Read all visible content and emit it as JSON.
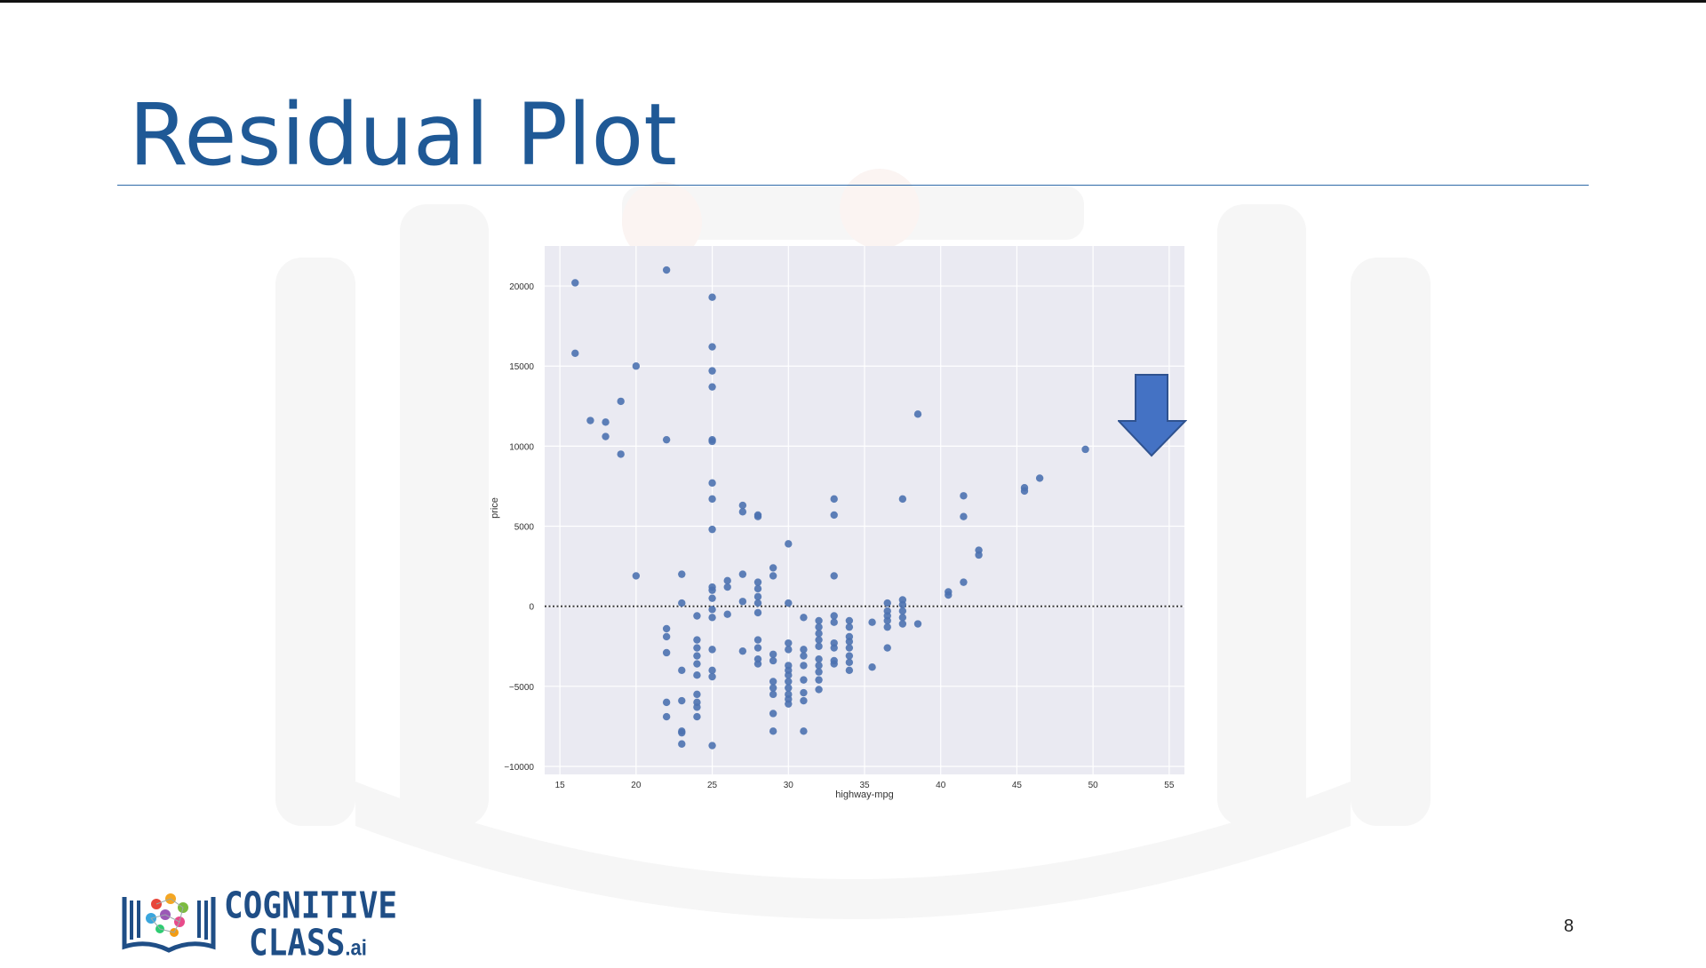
{
  "slide": {
    "title": "Residual Plot",
    "page_number": "8",
    "title_color": "#1f5996",
    "arrow": {
      "icon": "down-arrow-icon",
      "color": "#4472c4"
    }
  },
  "logo": {
    "line1": "COGNITIVE",
    "line2": "CLASS",
    "suffix": ".ai",
    "icon": "open-book-icon"
  },
  "chart_data": {
    "type": "scatter",
    "xlabel": "highway-mpg",
    "ylabel": "price",
    "xlim": [
      14,
      56
    ],
    "ylim": [
      -10500,
      22500
    ],
    "xticks": [
      15,
      20,
      25,
      30,
      35,
      40,
      45,
      50,
      55
    ],
    "yticks": [
      -10000,
      -5000,
      0,
      5000,
      10000,
      15000,
      20000
    ],
    "ytick_labels": [
      "−10000",
      "−5000",
      "0",
      "5000",
      "10000",
      "15000",
      "20000"
    ],
    "grid": true,
    "background": "#eaeaf2",
    "point_color": "#4c72b0",
    "reference_line": {
      "y": 0,
      "style": "dotted",
      "color": "#333333"
    },
    "points": [
      [
        16,
        20200
      ],
      [
        16,
        15800
      ],
      [
        17,
        11600
      ],
      [
        18,
        11500
      ],
      [
        18,
        10600
      ],
      [
        19,
        12800
      ],
      [
        19,
        9500
      ],
      [
        20,
        15000
      ],
      [
        20,
        1900
      ],
      [
        22,
        21000
      ],
      [
        22,
        10400
      ],
      [
        22,
        -1400
      ],
      [
        22,
        -1900
      ],
      [
        22,
        -2900
      ],
      [
        22,
        -6000
      ],
      [
        22,
        -6900
      ],
      [
        23,
        2000
      ],
      [
        23,
        200
      ],
      [
        23,
        -4000
      ],
      [
        23,
        -5900
      ],
      [
        23,
        -7800
      ],
      [
        23,
        -8600
      ],
      [
        23,
        -7900
      ],
      [
        24,
        -600
      ],
      [
        24,
        -2100
      ],
      [
        24,
        -2600
      ],
      [
        24,
        -3100
      ],
      [
        24,
        -3600
      ],
      [
        24,
        -4300
      ],
      [
        24,
        -5500
      ],
      [
        24,
        -6000
      ],
      [
        24,
        -6300
      ],
      [
        24,
        -6900
      ],
      [
        25,
        19300
      ],
      [
        25,
        16200
      ],
      [
        25,
        14700
      ],
      [
        25,
        13700
      ],
      [
        25,
        10400
      ],
      [
        25,
        10300
      ],
      [
        25,
        7700
      ],
      [
        25,
        6700
      ],
      [
        25,
        4800
      ],
      [
        25,
        1200
      ],
      [
        25,
        1000
      ],
      [
        25,
        500
      ],
      [
        25,
        -200
      ],
      [
        25,
        -700
      ],
      [
        25,
        -2700
      ],
      [
        25,
        -4000
      ],
      [
        25,
        -4400
      ],
      [
        25,
        -8700
      ],
      [
        26,
        1600
      ],
      [
        26,
        1200
      ],
      [
        26,
        -500
      ],
      [
        27,
        6300
      ],
      [
        27,
        5900
      ],
      [
        27,
        2000
      ],
      [
        27,
        300
      ],
      [
        27,
        -2800
      ],
      [
        28,
        5700
      ],
      [
        28,
        5600
      ],
      [
        28,
        1500
      ],
      [
        28,
        1100
      ],
      [
        28,
        600
      ],
      [
        28,
        200
      ],
      [
        28,
        -400
      ],
      [
        28,
        -2100
      ],
      [
        28,
        -2600
      ],
      [
        28,
        -3300
      ],
      [
        28,
        -3600
      ],
      [
        29,
        2400
      ],
      [
        29,
        1900
      ],
      [
        29,
        -3000
      ],
      [
        29,
        -3400
      ],
      [
        29,
        -4700
      ],
      [
        29,
        -5100
      ],
      [
        29,
        -5500
      ],
      [
        29,
        -6700
      ],
      [
        29,
        -7800
      ],
      [
        30,
        3900
      ],
      [
        30,
        200
      ],
      [
        30,
        -2300
      ],
      [
        30,
        -2700
      ],
      [
        30,
        -3700
      ],
      [
        30,
        -4000
      ],
      [
        30,
        -4300
      ],
      [
        30,
        -4700
      ],
      [
        30,
        -5100
      ],
      [
        30,
        -5500
      ],
      [
        30,
        -5800
      ],
      [
        30,
        -6100
      ],
      [
        31,
        -700
      ],
      [
        31,
        -2700
      ],
      [
        31,
        -3100
      ],
      [
        31,
        -3700
      ],
      [
        31,
        -4600
      ],
      [
        31,
        -5400
      ],
      [
        31,
        -5900
      ],
      [
        31,
        -7800
      ],
      [
        32,
        -900
      ],
      [
        32,
        -1300
      ],
      [
        32,
        -1700
      ],
      [
        32,
        -2100
      ],
      [
        32,
        -2500
      ],
      [
        32,
        -3300
      ],
      [
        32,
        -3700
      ],
      [
        32,
        -4100
      ],
      [
        32,
        -4600
      ],
      [
        32,
        -5200
      ],
      [
        33,
        6700
      ],
      [
        33,
        5700
      ],
      [
        33,
        1900
      ],
      [
        33,
        -600
      ],
      [
        33,
        -1000
      ],
      [
        33,
        -2300
      ],
      [
        33,
        -2600
      ],
      [
        33,
        -3400
      ],
      [
        33,
        -3600
      ],
      [
        34,
        -900
      ],
      [
        34,
        -1300
      ],
      [
        34,
        -1900
      ],
      [
        34,
        -2200
      ],
      [
        34,
        -2600
      ],
      [
        34,
        -3100
      ],
      [
        34,
        -3500
      ],
      [
        34,
        -4000
      ],
      [
        35.5,
        -3800
      ],
      [
        35.5,
        -1000
      ],
      [
        36.5,
        200
      ],
      [
        36.5,
        -300
      ],
      [
        36.5,
        -600
      ],
      [
        36.5,
        -900
      ],
      [
        36.5,
        -1300
      ],
      [
        36.5,
        -2600
      ],
      [
        37.5,
        6700
      ],
      [
        37.5,
        400
      ],
      [
        37.5,
        100
      ],
      [
        37.5,
        -300
      ],
      [
        37.5,
        -700
      ],
      [
        37.5,
        -1100
      ],
      [
        38.5,
        12000
      ],
      [
        38.5,
        -1100
      ],
      [
        40.5,
        900
      ],
      [
        40.5,
        700
      ],
      [
        41.5,
        6900
      ],
      [
        41.5,
        5600
      ],
      [
        41.5,
        1500
      ],
      [
        42.5,
        3500
      ],
      [
        42.5,
        3200
      ],
      [
        45.5,
        7400
      ],
      [
        45.5,
        7200
      ],
      [
        46.5,
        8000
      ],
      [
        49.5,
        9800
      ]
    ]
  }
}
